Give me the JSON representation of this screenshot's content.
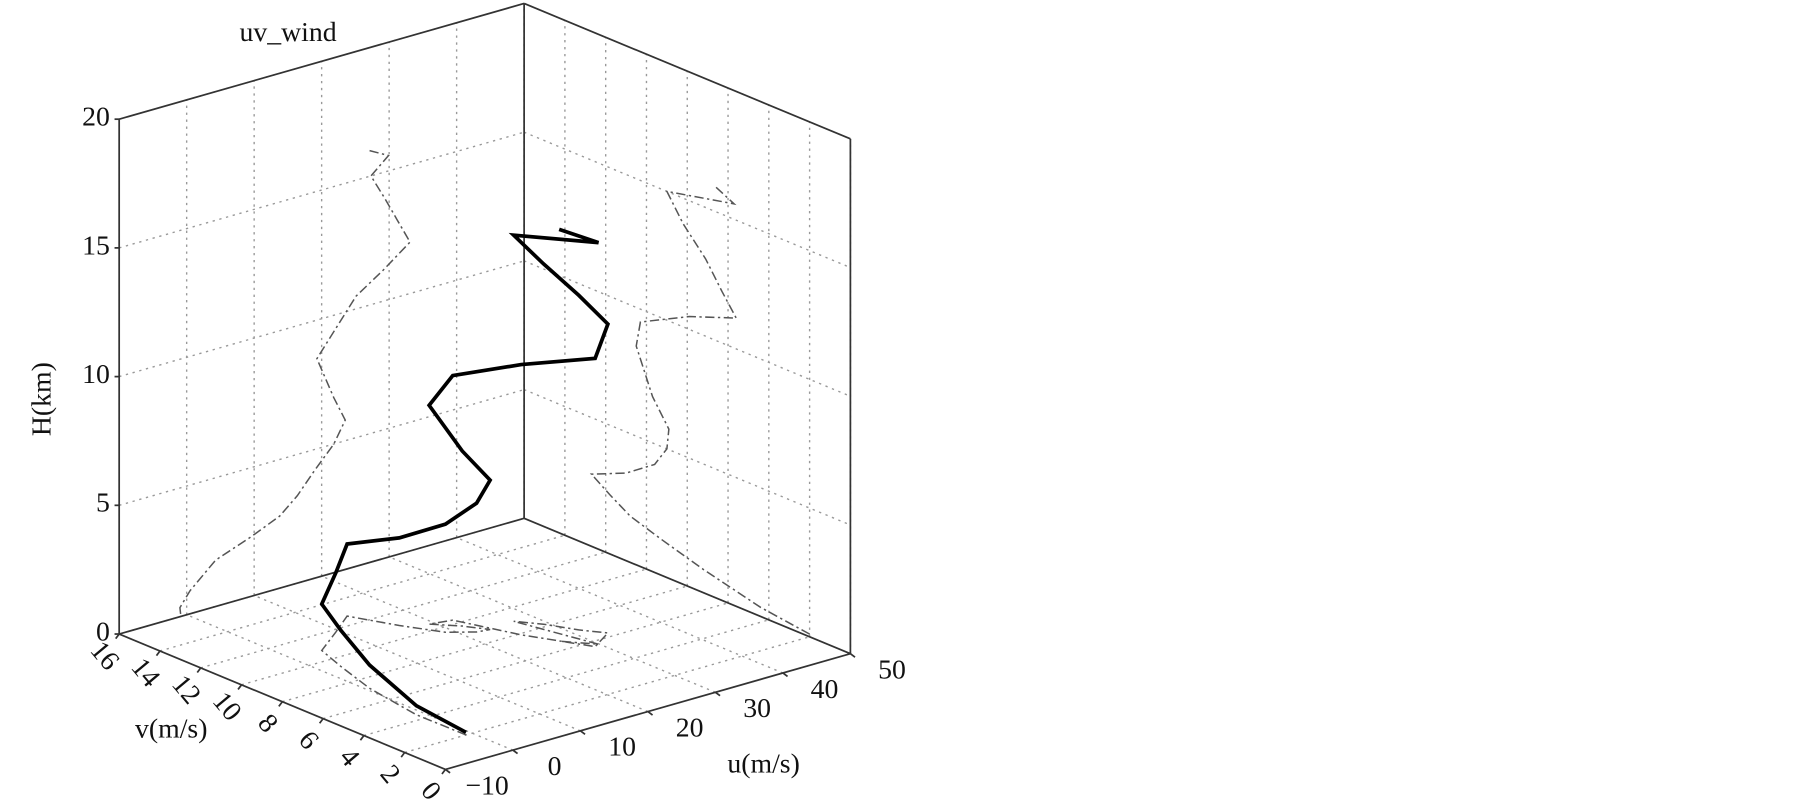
{
  "chart_data": {
    "type": "line3d",
    "title": "uv_wind",
    "xlabel": "u(m/s)",
    "ylabel": "v(m/s)",
    "zlabel": "H(km)",
    "x": [
      -0.9,
      -1.0,
      0.5,
      2.6,
      4.3,
      9.4,
      13.8,
      16.4,
      19.0,
      21.8,
      23.5,
      21.8,
      19.3,
      22.2,
      25.1,
      29.1,
      33.1,
      31.2,
      29.3,
      27.3,
      29.9,
      27.1
    ],
    "y": [
      2.0,
      4.4,
      7.2,
      9.3,
      10.8,
      11.8,
      12.7,
      11.0,
      9.6,
      9.0,
      8.9,
      9.7,
      10.5,
      10.3,
      7.9,
      5.6,
      6.3,
      7.1,
      8.2,
      9.0,
      5.7,
      6.7
    ],
    "z": [
      0.1,
      0.35,
      0.9,
      1.4,
      1.8,
      2.3,
      2.8,
      3.4,
      4.2,
      5.0,
      5.8,
      6.8,
      8.5,
      9.5,
      10.5,
      11.2,
      12.0,
      13.0,
      14.0,
      15.0,
      15.6,
      16.0
    ],
    "color": "#000000",
    "projection_color": "#555555",
    "xlim": [
      -10,
      50
    ],
    "ylim": [
      0,
      16
    ],
    "zlim": [
      0,
      20
    ],
    "xticks": [
      {
        "value": -10,
        "label": "−10"
      },
      0,
      10,
      20,
      30,
      40,
      50
    ],
    "yticks": [
      0,
      2,
      4,
      6,
      8,
      10,
      12,
      14,
      16
    ],
    "zticks": [
      0,
      5,
      10,
      15,
      20
    ],
    "grid": true
  }
}
